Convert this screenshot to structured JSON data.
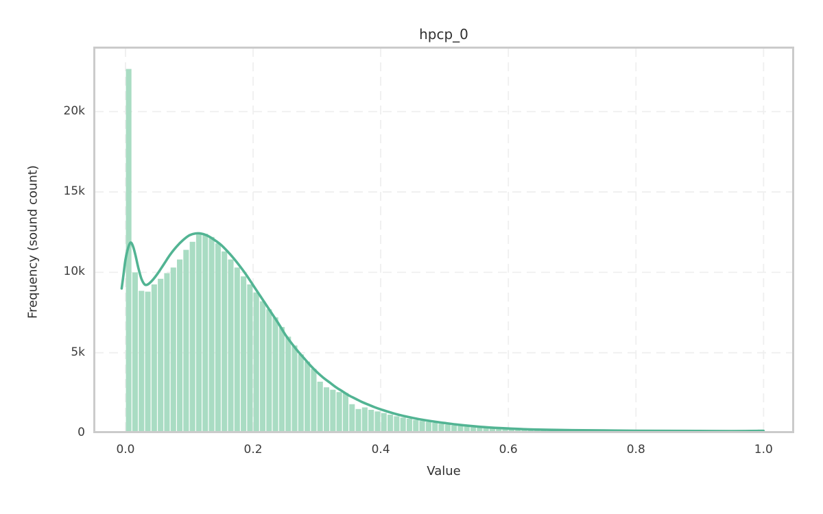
{
  "chart": {
    "title": "hpcp_0",
    "xlabel": "Value",
    "ylabel": "Frequency (sound count)"
  },
  "chart_data": {
    "type": "bar",
    "subtype": "histogram_with_kde",
    "title": "hpcp_0",
    "xlabel": "Value",
    "ylabel": "Frequency (sound count)",
    "xlim": [
      -0.0505,
      1.048
    ],
    "ylim": [
      0,
      24040
    ],
    "grid": "dashed, both axes",
    "legend_position": "none",
    "bin_start": 0.0,
    "bin_width": 0.01,
    "bin_counts": [
      22650,
      10000,
      8850,
      8800,
      9250,
      9600,
      9950,
      10300,
      10800,
      11400,
      11900,
      12350,
      12400,
      12200,
      11800,
      11300,
      10800,
      10300,
      9750,
      9250,
      8750,
      8200,
      7700,
      7200,
      6600,
      6000,
      5450,
      4900,
      4450,
      4000,
      3200,
      2850,
      2700,
      2550,
      2500,
      1800,
      1500,
      1600,
      1450,
      1350,
      1250,
      1150,
      1050,
      970,
      900,
      820,
      760,
      700,
      640,
      580,
      530,
      480,
      440,
      400,
      360,
      340,
      310,
      280,
      260,
      240,
      220,
      200,
      190,
      170,
      160,
      150,
      140,
      130,
      130,
      120,
      120,
      110,
      110,
      100,
      100,
      100,
      90,
      90,
      90,
      90,
      80,
      80,
      80,
      80,
      80,
      70,
      70,
      70,
      70,
      70,
      70,
      70,
      60,
      60,
      60,
      60,
      60,
      60,
      70,
      220
    ],
    "kde": {
      "x": [
        -0.006,
        -0.003,
        0.0,
        0.004,
        0.008,
        0.012,
        0.016,
        0.02,
        0.025,
        0.03,
        0.035,
        0.042,
        0.05,
        0.06,
        0.07,
        0.08,
        0.09,
        0.1,
        0.11,
        0.12,
        0.13,
        0.14,
        0.15,
        0.16,
        0.17,
        0.18,
        0.19,
        0.2,
        0.21,
        0.22,
        0.23,
        0.24,
        0.25,
        0.26,
        0.27,
        0.28,
        0.29,
        0.3,
        0.31,
        0.32,
        0.33,
        0.34,
        0.35,
        0.36,
        0.37,
        0.38,
        0.39,
        0.4,
        0.42,
        0.44,
        0.46,
        0.48,
        0.5,
        0.52,
        0.54,
        0.56,
        0.58,
        0.6,
        0.63,
        0.66,
        0.7,
        0.75,
        0.8,
        0.85,
        0.9,
        0.95,
        0.98,
        1.0
      ],
      "y": [
        9000,
        9900,
        10800,
        11500,
        11850,
        11600,
        11000,
        10300,
        9600,
        9250,
        9250,
        9500,
        9900,
        10500,
        11100,
        11600,
        12000,
        12300,
        12420,
        12400,
        12250,
        12000,
        11700,
        11300,
        10850,
        10350,
        9800,
        9200,
        8600,
        8000,
        7400,
        6800,
        6150,
        5600,
        5100,
        4650,
        4200,
        3800,
        3450,
        3150,
        2850,
        2600,
        2350,
        2150,
        1950,
        1780,
        1620,
        1480,
        1230,
        1030,
        870,
        740,
        630,
        530,
        450,
        380,
        330,
        290,
        240,
        210,
        185,
        165,
        150,
        140,
        135,
        130,
        135,
        140
      ]
    },
    "x_ticks": [
      {
        "value": 0.0,
        "label": "0.0"
      },
      {
        "value": 0.2,
        "label": "0.2"
      },
      {
        "value": 0.4,
        "label": "0.4"
      },
      {
        "value": 0.6,
        "label": "0.6"
      },
      {
        "value": 0.8,
        "label": "0.8"
      },
      {
        "value": 1.0,
        "label": "1.0"
      }
    ],
    "y_ticks": [
      {
        "value": 0,
        "label": "0"
      },
      {
        "value": 5000,
        "label": "5k"
      },
      {
        "value": 10000,
        "label": "10k"
      },
      {
        "value": 15000,
        "label": "15k"
      },
      {
        "value": 20000,
        "label": "20k"
      }
    ],
    "colors": {
      "bar_fill": "#a9dcc3",
      "kde_line": "#52b493",
      "grid": "#efefef",
      "spine": "#cbcbcb",
      "text": "#2f2f2f",
      "tick_text": "#3b3b3b",
      "background": "#ffffff"
    }
  }
}
